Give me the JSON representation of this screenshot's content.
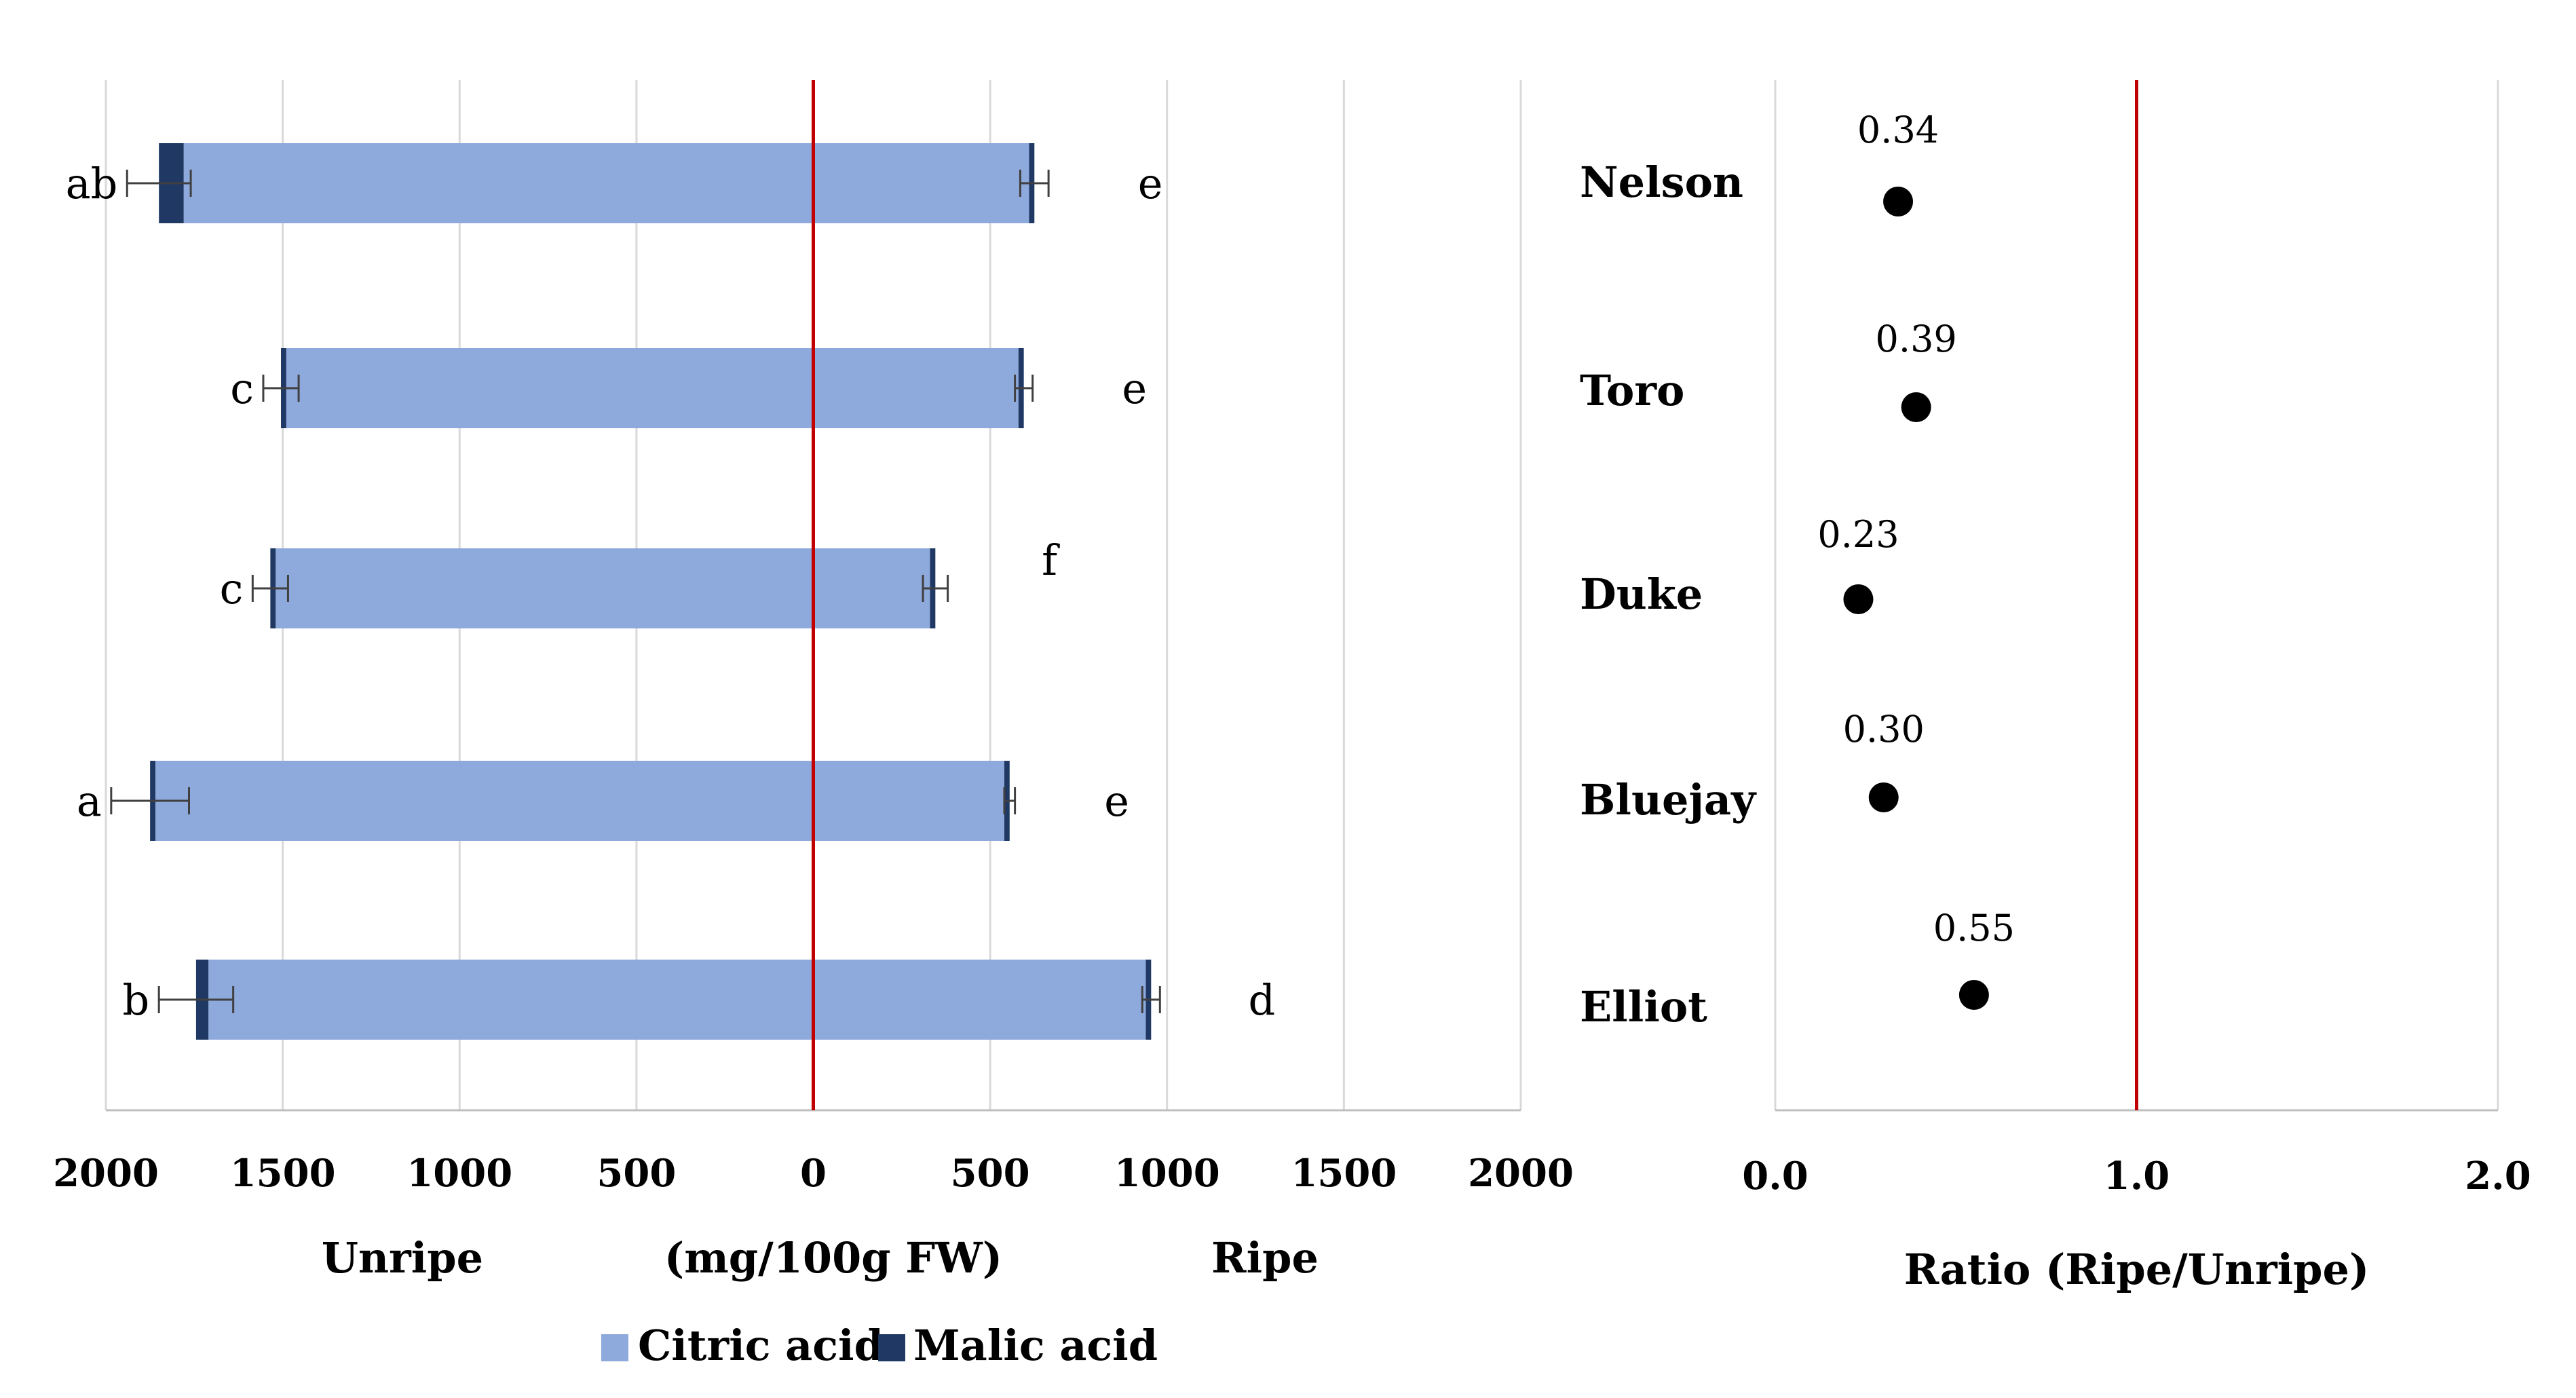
{
  "chart_data": [
    {
      "type": "bar",
      "orientation": "horizontal",
      "stacked": true,
      "diverging": true,
      "categories": [
        "Nelson",
        "Toro",
        "Duke",
        "Bluejay",
        "Elliot"
      ],
      "series": [
        {
          "name": "Citric acid",
          "color": "#8EA9DB",
          "unripe": [
            1780,
            1490,
            1520,
            1860,
            1710
          ],
          "ripe": [
            610,
            580,
            330,
            540,
            940
          ]
        },
        {
          "name": "Malic acid",
          "color": "#1F3864",
          "unripe": [
            70,
            15,
            15,
            15,
            35
          ],
          "ripe": [
            15,
            15,
            15,
            15,
            15
          ]
        }
      ],
      "error_bars": {
        "unripe": [
          90,
          50,
          50,
          110,
          105
        ],
        "ripe": [
          40,
          25,
          35,
          15,
          25
        ]
      },
      "significance": {
        "unripe": [
          "ab",
          "c",
          "c",
          "a",
          "b"
        ],
        "ripe": [
          "e",
          "e",
          "f",
          "e",
          "d"
        ]
      },
      "xlim": [
        -2000,
        2000
      ],
      "xticks": [
        2000,
        1500,
        1000,
        500,
        0,
        500,
        1000,
        1500,
        2000
      ],
      "xlabel_left": "Unripe",
      "xlabel_center": "(mg/100g FW)",
      "xlabel_right": "Ripe",
      "reference_line": 0,
      "reference_line_color": "#C00000",
      "grid": "vertical",
      "legend_position": "bottom"
    },
    {
      "type": "scatter",
      "categories": [
        "Nelson",
        "Toro",
        "Duke",
        "Bluejay",
        "Elliot"
      ],
      "values": [
        0.34,
        0.39,
        0.23,
        0.3,
        0.55
      ],
      "labels": [
        "0.34",
        "0.39",
        "0.23",
        "0.30",
        "0.55"
      ],
      "xlim": [
        0,
        2
      ],
      "xticks": [
        "0.0",
        "1.0",
        "2.0"
      ],
      "xlabel": "Ratio (Ripe/Unripe)",
      "reference_line": 1.0,
      "reference_line_color": "#C00000",
      "grid": "vertical",
      "marker_color": "#000000"
    }
  ]
}
